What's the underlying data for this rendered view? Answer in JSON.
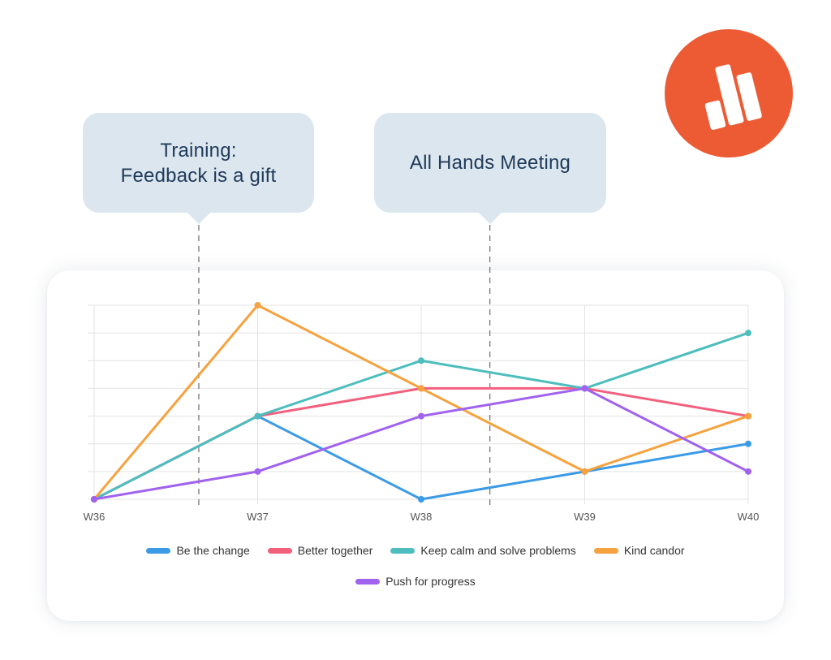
{
  "logo": {
    "icon": "bar-chart-logo-icon",
    "color": "#ec5b34"
  },
  "callouts": [
    {
      "lines": [
        "Training:",
        "Feedback is a gift"
      ],
      "x_category": "W36.6"
    },
    {
      "lines": [
        "All Hands Meeting"
      ],
      "x_category": "W38.4"
    }
  ],
  "chart_data": {
    "type": "line",
    "categories": [
      "W36",
      "W37",
      "W38",
      "W39",
      "W40"
    ],
    "ylim": [
      0,
      7
    ],
    "grid": true,
    "legend_position": "bottom",
    "annotations": [
      {
        "text": "Training: Feedback is a gift",
        "x": 0.64
      },
      {
        "text": "All Hands Meeting",
        "x": 2.42
      }
    ],
    "series": [
      {
        "name": "Be the change",
        "color": "#3b9be6",
        "values": [
          0,
          3,
          0,
          1,
          2
        ]
      },
      {
        "name": "Better together",
        "color": "#f2607e",
        "values": [
          0,
          3,
          4,
          4,
          3
        ]
      },
      {
        "name": "Keep calm and solve problems",
        "color": "#4dbdbd",
        "values": [
          0,
          3,
          5,
          4,
          6
        ]
      },
      {
        "name": "Kind candor",
        "color": "#f6a23e",
        "values": [
          0,
          7,
          4,
          1,
          3
        ]
      },
      {
        "name": "Push for progress",
        "color": "#a062ef",
        "values": [
          0,
          1,
          3,
          4,
          1
        ]
      }
    ]
  }
}
